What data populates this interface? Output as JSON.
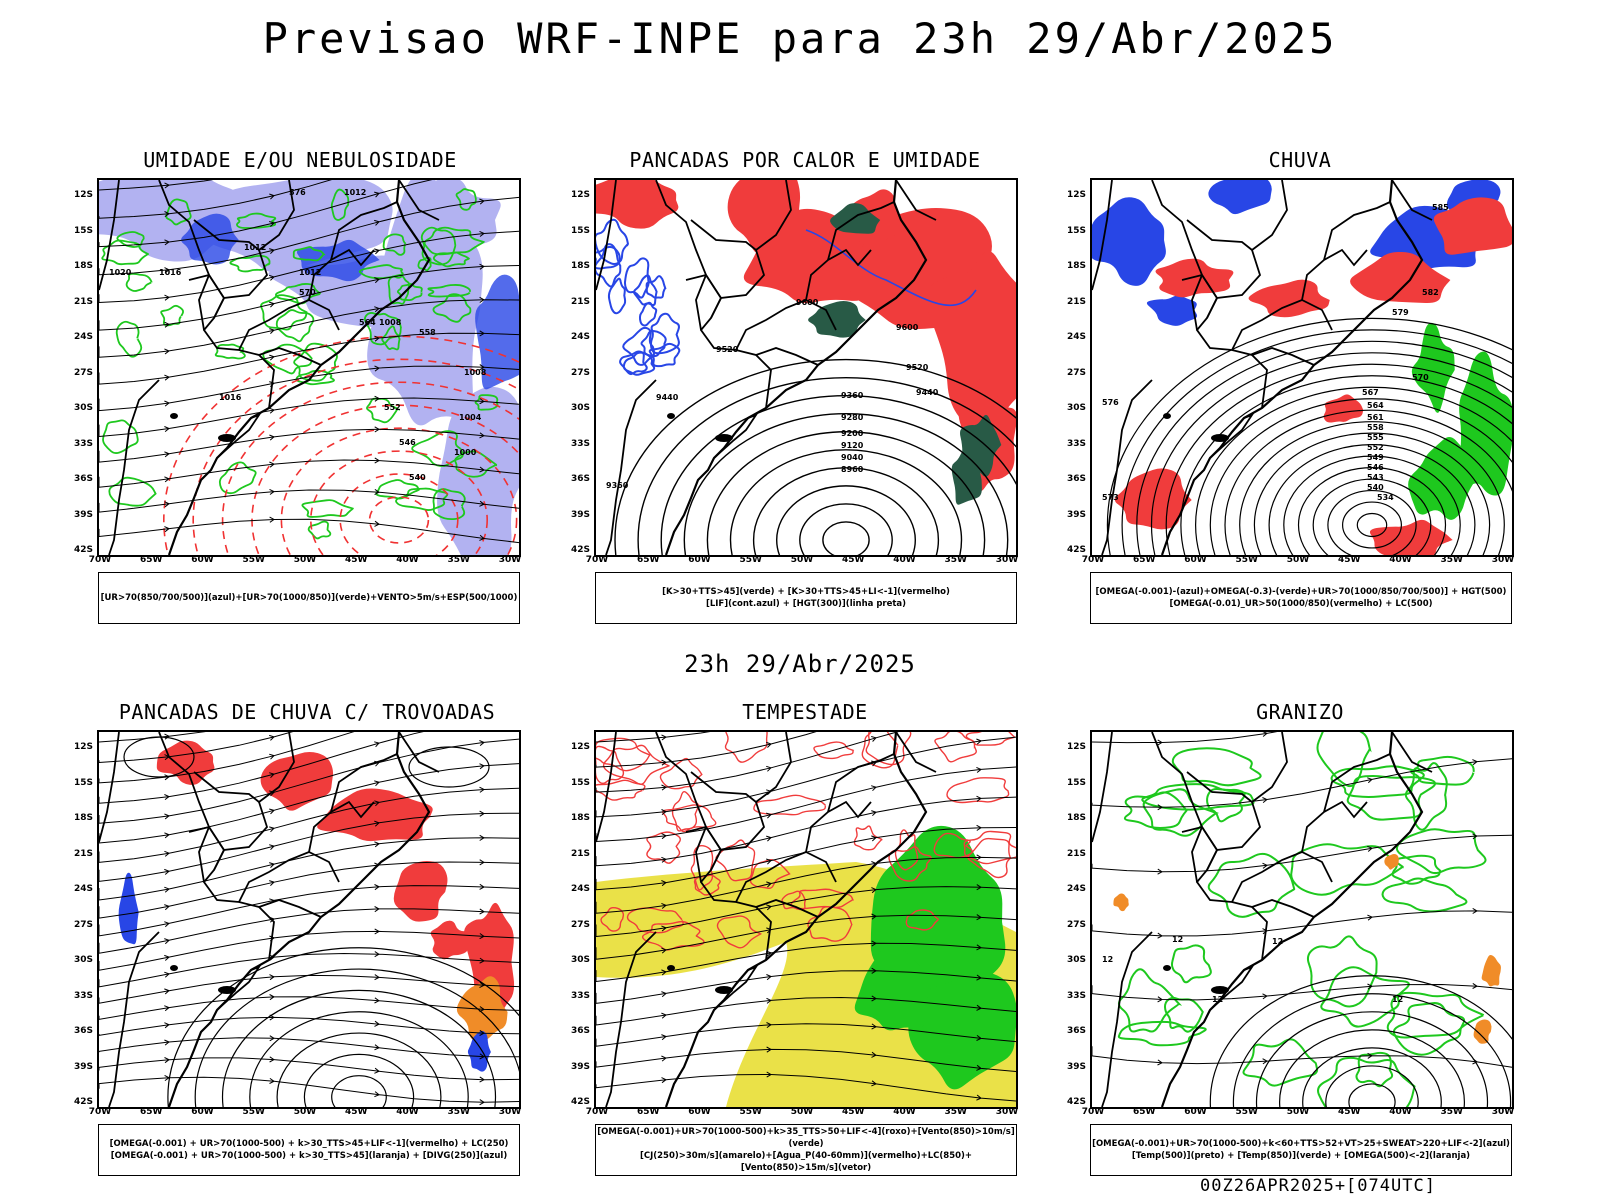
{
  "title": "Previsao WRF-INPE  para 23h 29/Abr/2025",
  "mid_date": "23h 29/Abr/2025",
  "footer": "00Z26APR2025+[074UTC]",
  "axes": {
    "lat_labels": [
      "12S",
      "15S",
      "18S",
      "21S",
      "24S",
      "27S",
      "30S",
      "33S",
      "36S",
      "39S",
      "42S"
    ],
    "lon_labels": [
      "70W",
      "65W",
      "60W",
      "55W",
      "50W",
      "45W",
      "40W",
      "35W",
      "30W"
    ]
  },
  "chart_data": [
    {
      "type": "map",
      "title": "UMIDADE E/OU NEBULOSIDADE",
      "legend": [
        "[UR>70(850/700/500)](azul)+[UR>70(1000/850)](verde)+VENTO>5m/s+ESP(500/1000)"
      ],
      "contour_labels": [
        "1012",
        "1012",
        "1012",
        "1016",
        "1020",
        "1008",
        "1008",
        "1004",
        "1000",
        "1016",
        "576",
        "570",
        "564",
        "558",
        "552",
        "546",
        "540"
      ]
    },
    {
      "type": "map",
      "title": "PANCADAS POR CALOR E UMIDADE",
      "legend": [
        "[K>30+TTS>45](verde) + [K>30+TTS>45+LI<-1](vermelho)",
        "[LIF](cont.azul) + [HGT(300)](linha preta)"
      ],
      "contour_labels": [
        "9600",
        "9600",
        "9520",
        "9520",
        "9440",
        "9440",
        "9360",
        "9360",
        "9280",
        "9200",
        "9120",
        "9040",
        "8960"
      ]
    },
    {
      "type": "map",
      "title": "CHUVA",
      "legend": [
        "[OMEGA(-0.001)-(azul)+OMEGA(-0.3)-(verde)+UR>70(1000/850/700/500)] + HGT(500)",
        "[OMEGA(-0.01)_UR>50(1000/850)(vermelho) + LC(500)"
      ],
      "contour_labels": [
        "585",
        "582",
        "579",
        "576",
        "573",
        "570",
        "567",
        "564",
        "561",
        "558",
        "555",
        "552",
        "549",
        "546",
        "543",
        "540",
        "534"
      ]
    },
    {
      "type": "map",
      "title": "PANCADAS DE CHUVA C/ TROVOADAS",
      "legend": [
        "[OMEGA(-0.001) + UR>70(1000-500) + k>30_TTS>45+LIF<-1](vermelho) + LC(250)",
        "[OMEGA(-0.001) + UR>70(1000-500) + k>30_TTS>45](laranja) + [DIVG(250)](azul)"
      ],
      "contour_labels": []
    },
    {
      "type": "map",
      "title": "TEMPESTADE",
      "legend": [
        "[OMEGA(-0.001)+UR>70(1000-500)+k>35_TTS>50+LIF<-4](roxo)+[Vento(850)>10m/s](verde)",
        "[CJ(250)>30m/s](amarelo)+[Agua_P(40-60mm)](vermelho)+LC(850)+[Vento(850)>15m/s](vetor)"
      ],
      "contour_labels": []
    },
    {
      "type": "map",
      "title": "GRANIZO",
      "legend": [
        "[OMEGA(-0.001)+UR>70(1000-500)+k<60+TTS>52+VT>25+SWEAT>220+LIF<-2](azul)",
        "[Temp(500)](preto) + [Temp(850)](verde) + [OMEGA(500)<-2](laranja)"
      ],
      "contour_labels": [
        "12",
        "12",
        "12",
        "12",
        "12"
      ]
    }
  ],
  "colors": {
    "red": "#f03c3c",
    "green": "#1ec81e",
    "blue": "#2846e6",
    "lavender": "#aaaaf0",
    "yellow": "#e6dc28",
    "orange": "#f08c28",
    "darkgreen": "#285a46",
    "dashed_red": "#f03232"
  }
}
